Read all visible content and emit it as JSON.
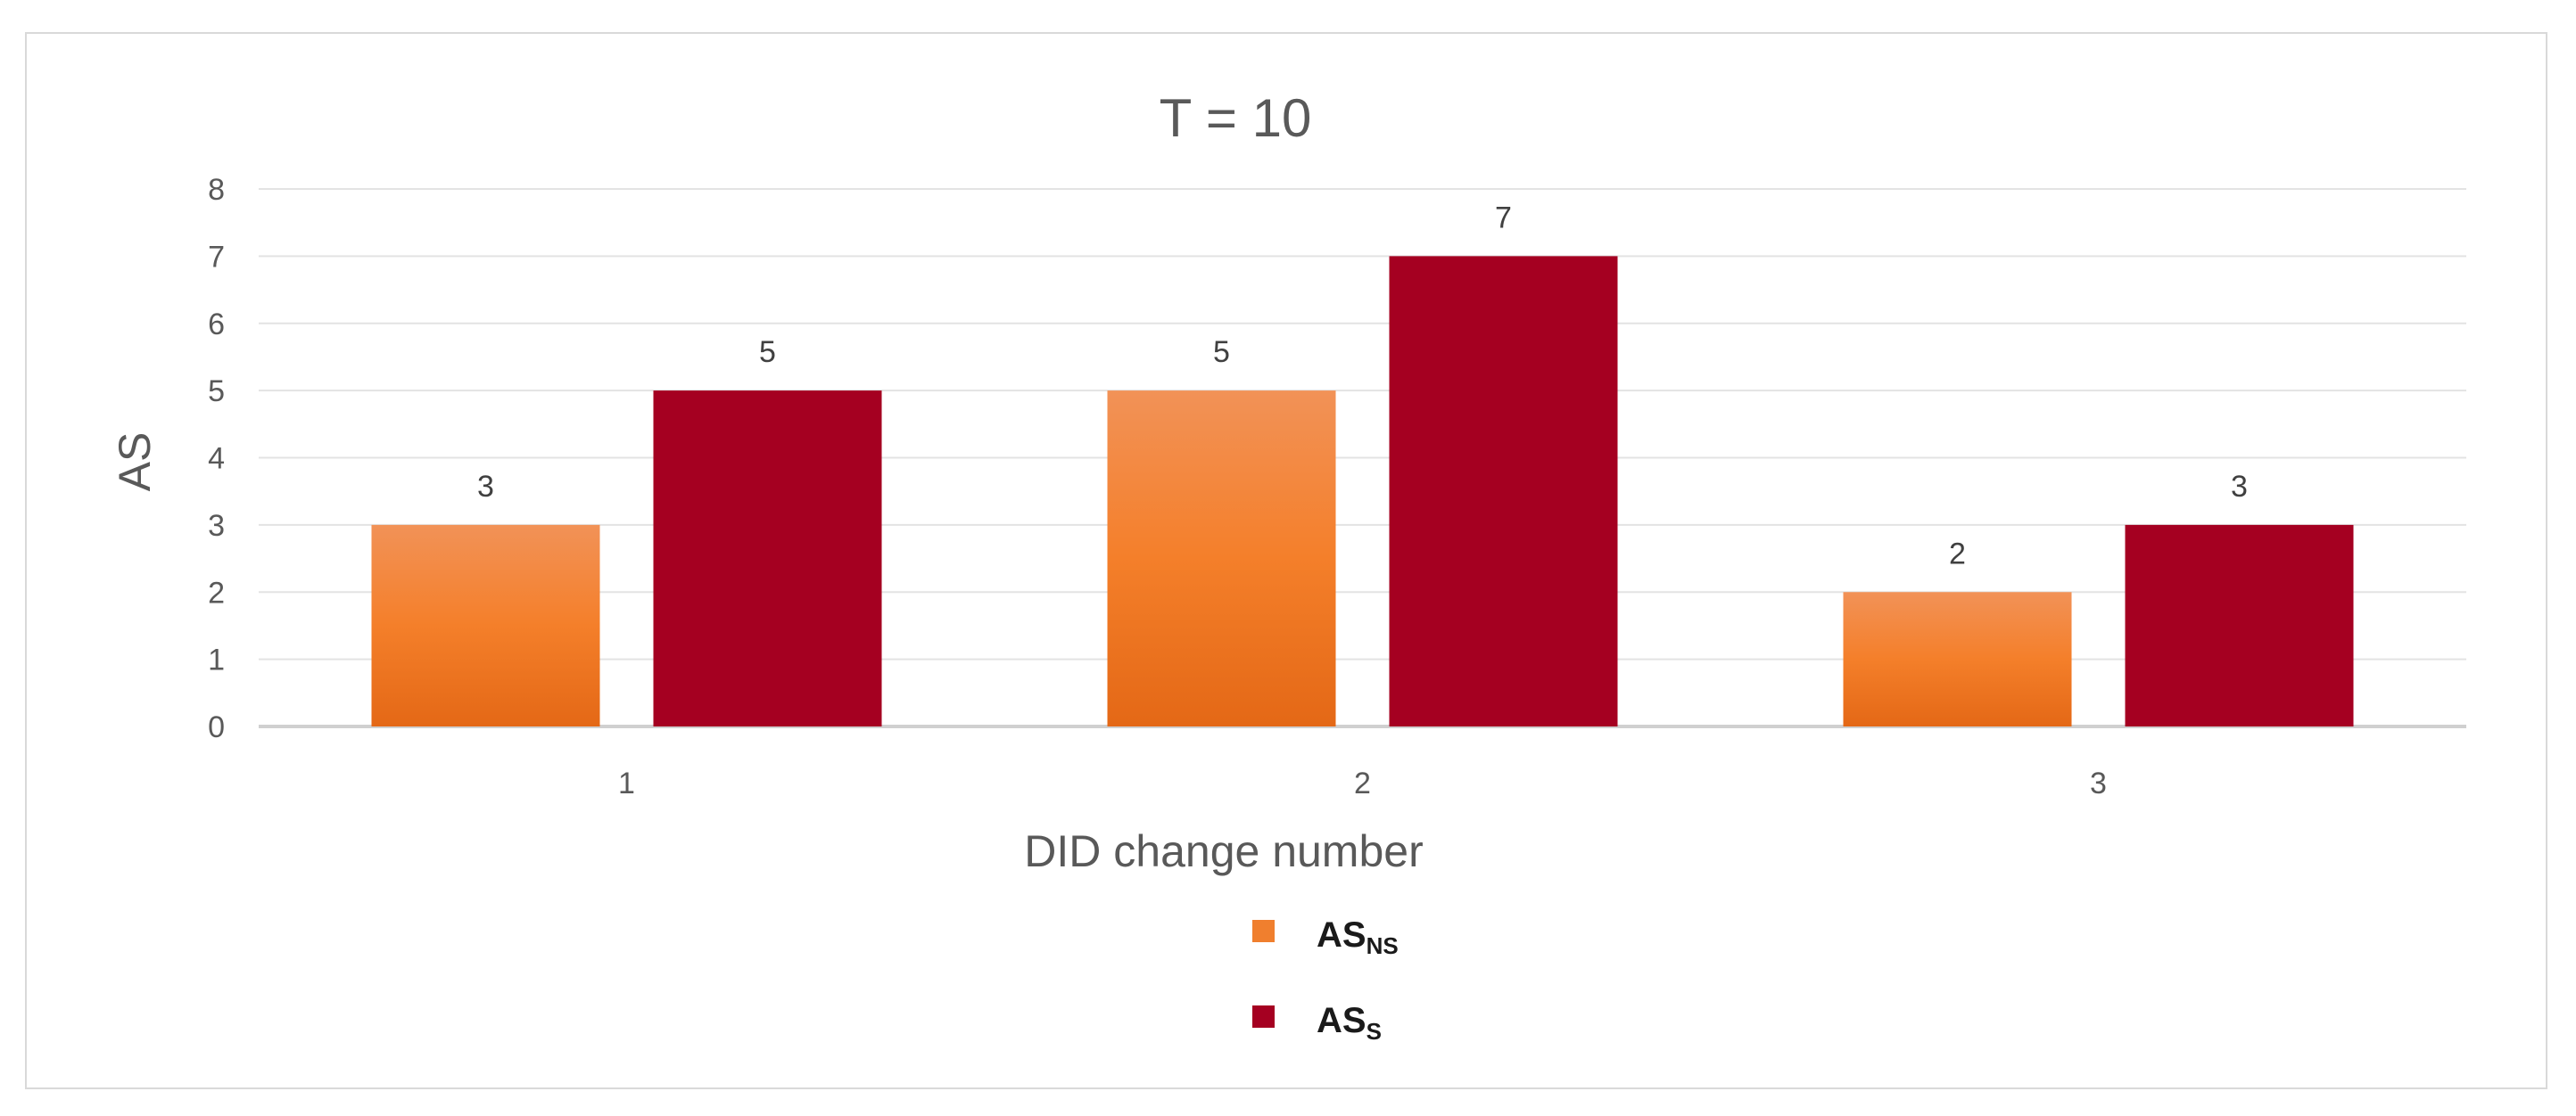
{
  "chart_data": {
    "type": "bar",
    "title": "T = 10",
    "xlabel": "DID change number",
    "ylabel": "AS",
    "categories": [
      "1",
      "2",
      "3"
    ],
    "ylim": [
      0,
      8
    ],
    "yticks": [
      "0",
      "1",
      "2",
      "3",
      "4",
      "5",
      "6",
      "7",
      "8"
    ],
    "grid": true,
    "legend_position": "bottom",
    "series": [
      {
        "name": "AS",
        "name_sub": "NS",
        "values": [
          3,
          5,
          2
        ],
        "color": "#F07F2E"
      },
      {
        "name": "AS",
        "name_sub": "S",
        "values": [
          5,
          7,
          3
        ],
        "color": "#A50021"
      }
    ]
  }
}
